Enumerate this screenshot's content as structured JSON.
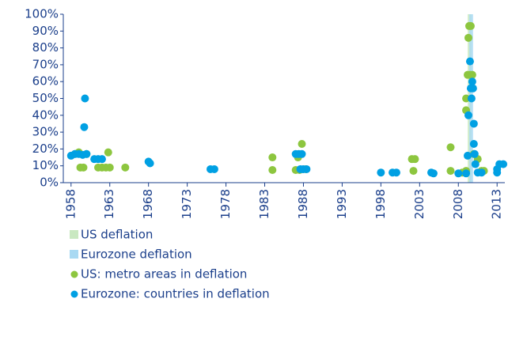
{
  "chart_data": {
    "type": "scatter",
    "xlim": [
      1957,
      2014
    ],
    "xticks": [
      1958,
      1963,
      1968,
      1973,
      1978,
      1983,
      1988,
      1993,
      1998,
      2003,
      2008,
      2013
    ],
    "ylim": [
      0,
      100
    ],
    "yticks": [
      {
        "value": 0,
        "label": "0%"
      },
      {
        "value": 10,
        "label": "10%"
      },
      {
        "value": 20,
        "label": "20%"
      },
      {
        "value": 30,
        "label": "30%"
      },
      {
        "value": 40,
        "label": "40%"
      },
      {
        "value": 50,
        "label": "50%"
      },
      {
        "value": 60,
        "label": "60%"
      },
      {
        "value": 70,
        "label": "70%"
      },
      {
        "value": 80,
        "label": "80%"
      },
      {
        "value": 90,
        "label": "90%"
      },
      {
        "value": 100,
        "label": "100%"
      }
    ],
    "bands": [
      {
        "name": "US deflation",
        "color": "#c9e8c1",
        "start": 2009.2,
        "end": 2009.7
      },
      {
        "name": "Eurozone deflation",
        "color": "#a9d9f2",
        "start": 2009.4,
        "end": 2009.9
      }
    ],
    "series": [
      {
        "name": "US: metro areas in deflation",
        "color": "#8dc63f",
        "x": [
          1958.5,
          1959,
          1959.2,
          1959.6,
          1960,
          1961.5,
          1962,
          1962.5,
          1963,
          1962.8,
          1965,
          1984,
          1984,
          1987,
          1987.3,
          1987.5,
          1987.8,
          1988.3,
          2002,
          2002.4,
          2002.2,
          2007,
          2007,
          2008.5,
          2009,
          2009,
          2009.2,
          2009.3,
          2009.4,
          2009.6,
          2009.5,
          2009.8,
          2009,
          2010,
          2010.5,
          2011,
          2011.3
        ],
        "values": [
          17,
          18,
          9,
          9,
          17,
          9,
          9,
          9,
          9,
          18,
          9,
          15,
          7.5,
          7.5,
          15,
          7.5,
          23,
          8,
          14,
          14,
          7,
          21,
          7,
          6,
          43,
          50,
          64,
          86,
          93,
          93,
          64,
          64,
          7,
          17,
          14,
          7,
          7
        ]
      },
      {
        "name": "Eurozone: countries in deflation",
        "color": "#00a0e3",
        "x": [
          1958,
          1958.5,
          1959,
          1959.5,
          1959.8,
          1959.7,
          1960,
          1961,
          1961.5,
          1962,
          1968,
          1968.2,
          1976,
          1976.5,
          1987,
          1987.4,
          1987.8,
          1987.6,
          1988,
          1988.4,
          1998,
          1999.5,
          2000,
          2004.5,
          2004.8,
          2008,
          2009,
          2009.2,
          2009.3,
          2009.5,
          2009.6,
          2009.7,
          2009.8,
          2009.9,
          2010,
          2010,
          2010.1,
          2010.2,
          2010.5,
          2011,
          2013,
          2013,
          2013.3,
          2013.8
        ],
        "values": [
          16,
          17,
          17,
          16.5,
          50,
          33,
          17,
          14,
          14,
          14,
          12.5,
          11.5,
          8,
          8,
          17,
          17,
          17,
          8,
          8,
          8,
          6,
          6,
          6,
          6,
          5.5,
          5.5,
          5.5,
          16,
          40,
          72,
          56,
          50,
          60,
          56,
          35,
          23,
          17,
          11,
          6,
          6,
          6,
          8,
          11,
          11
        ]
      }
    ]
  }
}
